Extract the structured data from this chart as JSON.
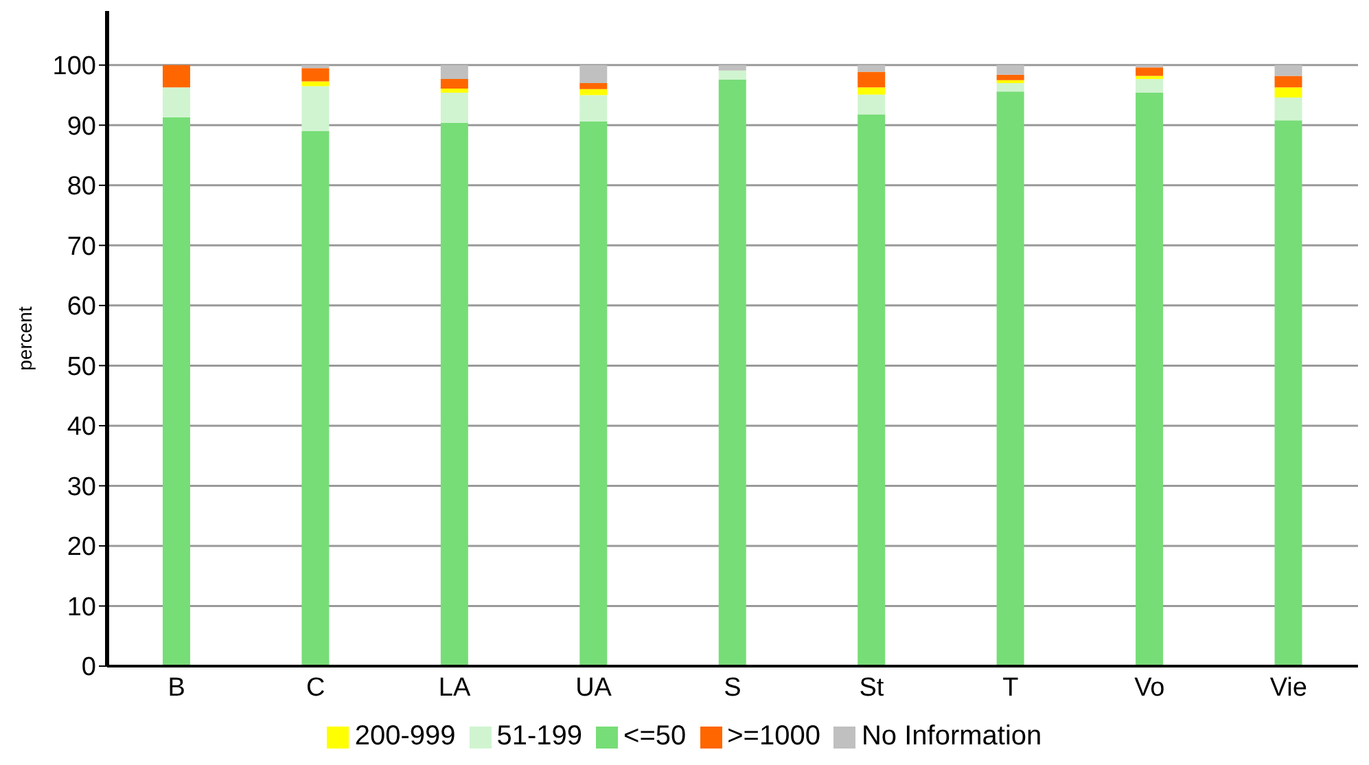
{
  "chart_data": {
    "type": "bar",
    "stacked": true,
    "ylabel": "percent",
    "categories": [
      "B",
      "C",
      "LA",
      "UA",
      "S",
      "St",
      "T",
      "Vo",
      "Vie"
    ],
    "series": [
      {
        "name": "<=50",
        "color": "#77dd77",
        "values": [
          91.3,
          89.0,
          90.4,
          90.6,
          97.6,
          91.8,
          95.6,
          95.4,
          90.8
        ]
      },
      {
        "name": "51-199",
        "color": "#d0f4d0",
        "values": [
          5.0,
          7.5,
          5.0,
          4.4,
          1.5,
          3.3,
          1.4,
          2.3,
          3.8
        ]
      },
      {
        "name": "200-999",
        "color": "#ffff00",
        "values": [
          0,
          0.8,
          0.7,
          1.0,
          0,
          1.2,
          0.5,
          0.5,
          1.7
        ]
      },
      {
        "name": ">=1000",
        "color": "#ff6600",
        "values": [
          3.7,
          2.2,
          1.6,
          1.0,
          0,
          2.6,
          0.9,
          1.4,
          1.9
        ]
      },
      {
        "name": "No Information",
        "color": "#c0c0c0",
        "values": [
          0,
          0.5,
          2.3,
          3.0,
          0.9,
          1.1,
          1.6,
          0.4,
          1.8
        ]
      }
    ],
    "ylim": [
      0,
      109
    ],
    "yticks": [
      0,
      10,
      20,
      30,
      40,
      50,
      60,
      70,
      80,
      90,
      100
    ],
    "grid": "y",
    "legend": "bottom"
  }
}
